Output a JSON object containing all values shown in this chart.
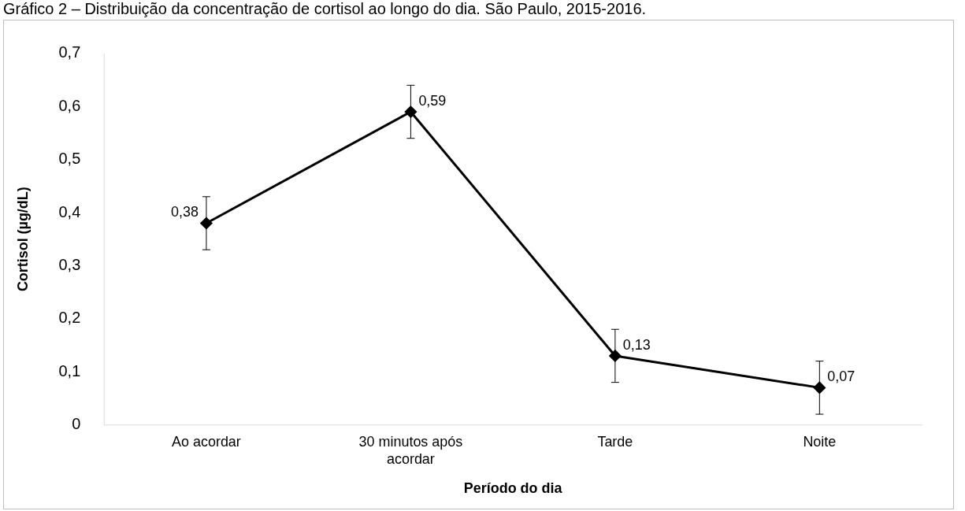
{
  "chart_data": {
    "type": "line",
    "title": "Gráfico 2 – Distribuição da concentração de cortisol ao longo do dia. São Paulo, 2015-2016.",
    "xlabel": "Período do dia",
    "ylabel": "Cortisol (µg/dL)",
    "categories": [
      "Ao acordar",
      "30 minutos após acordar",
      "Tarde",
      "Noite"
    ],
    "series": [
      {
        "color": "#000000",
        "values": [
          0.38,
          0.59,
          0.13,
          0.07
        ],
        "value_labels": [
          "0,38",
          "0,59",
          "0,13",
          "0,07"
        ],
        "errors": [
          0.05,
          0.05,
          0.05,
          0.05
        ]
      }
    ],
    "ylim": [
      0,
      0.7
    ],
    "yticks": [
      {
        "value": 0,
        "label": "0"
      },
      {
        "value": 0.1,
        "label": "0,1"
      },
      {
        "value": 0.2,
        "label": "0,2"
      },
      {
        "value": 0.3,
        "label": "0,3"
      },
      {
        "value": 0.4,
        "label": "0,4"
      },
      {
        "value": 0.5,
        "label": "0,5"
      },
      {
        "value": 0.6,
        "label": "0,6"
      },
      {
        "value": 0.7,
        "label": "0,7"
      }
    ],
    "grid": false,
    "legend": false,
    "marker": "diamond",
    "line_style": "solid"
  }
}
